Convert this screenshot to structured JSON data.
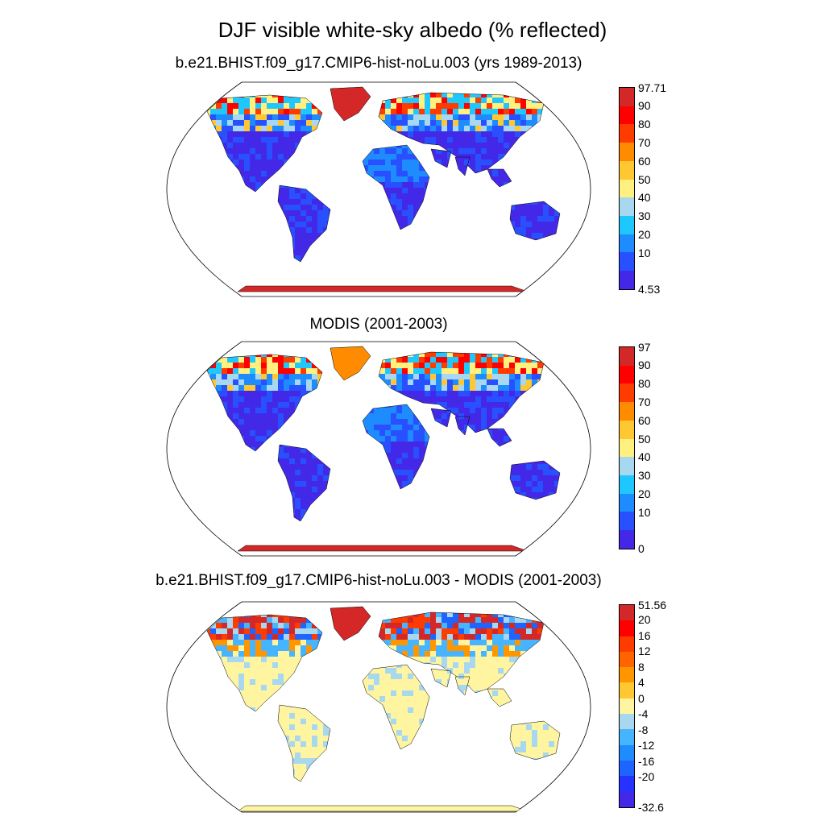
{
  "title": "DJF visible white-sky albedo (% reflected)",
  "panels": [
    {
      "title": "b.e21.BHIST.f09_g17.CMIP6-hist-noLu.003 (yrs 1989-2013)",
      "colorbar": {
        "labels": [
          "97.71",
          "90",
          "80",
          "70",
          "60",
          "50",
          "40",
          "30",
          "20",
          "10",
          "4.53"
        ],
        "colors": [
          "#d42828",
          "#ff0000",
          "#ff3c00",
          "#ff8c00",
          "#ffc832",
          "#fff080",
          "#a8d8f0",
          "#1ec8ff",
          "#1e8cff",
          "#2850ff",
          "#4428e8"
        ]
      }
    },
    {
      "title": "MODIS (2001-2003)",
      "colorbar": {
        "labels": [
          "97",
          "90",
          "80",
          "70",
          "60",
          "50",
          "40",
          "30",
          "20",
          "10",
          "0"
        ],
        "colors": [
          "#d42828",
          "#ff0000",
          "#ff3c00",
          "#ff8c00",
          "#ffc832",
          "#fff080",
          "#a8d8f0",
          "#1ec8ff",
          "#1e8cff",
          "#2850ff",
          "#4428e8"
        ]
      }
    },
    {
      "title": "b.e21.BHIST.f09_g17.CMIP6-hist-noLu.003 - MODIS (2001-2003)",
      "colorbar": {
        "labels": [
          "51.56",
          "20",
          "16",
          "12",
          "8",
          "4",
          "0",
          "-4",
          "-8",
          "-12",
          "-16",
          "-20",
          "-32.6"
        ],
        "colors": [
          "#d42828",
          "#ff0000",
          "#ff3c00",
          "#ff6400",
          "#ff9600",
          "#ffc832",
          "#fff5a0",
          "#a8d8f0",
          "#46b4ff",
          "#1e8cff",
          "#1e64ff",
          "#2832ff",
          "#4428e8"
        ]
      }
    }
  ]
}
